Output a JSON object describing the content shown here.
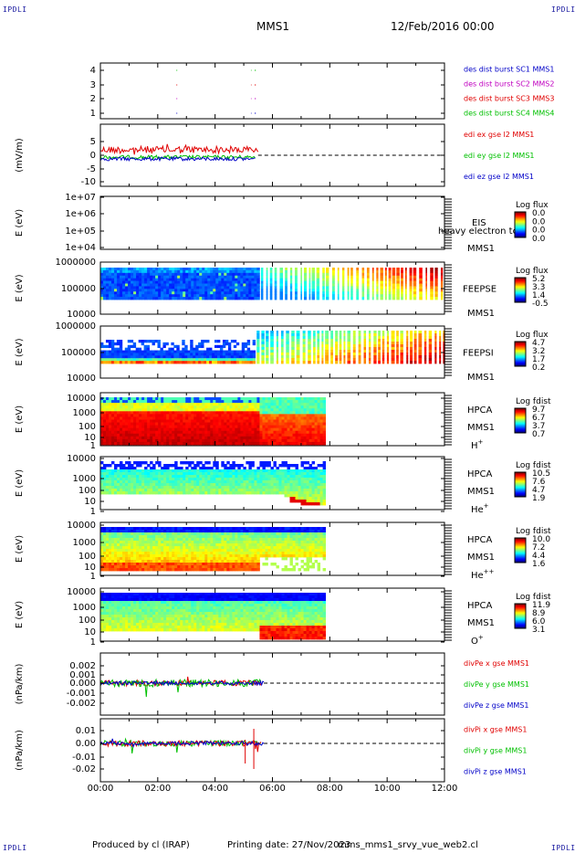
{
  "corner_tag": "IPDLI",
  "header": {
    "title": "MMS1",
    "datetime": "12/Feb/2016 00:00"
  },
  "footer": {
    "producer": "Produced by cl (IRAP)",
    "print_date": "Printing date: 27/Nov/2023",
    "filename": "mms_mms1_srvy_vue_web2.cl"
  },
  "time_axis": {
    "ticks": [
      "00:00",
      "02:00",
      "04:00",
      "06:00",
      "08:00",
      "10:00",
      "12:00"
    ]
  },
  "colors": {
    "red": "#e00000",
    "green": "#00c000",
    "blue": "#0000c8",
    "magenta": "#c000c0",
    "label_blue": "#0000a0"
  },
  "panels": [
    {
      "id": "burst",
      "type": "lines",
      "ylabel": "",
      "yticks": [
        "4",
        "3",
        "2",
        "1"
      ],
      "legend": [
        {
          "text": "des dist burst SC1 MMS1",
          "color": "#0000c8"
        },
        {
          "text": "des dist burst SC2 MMS2",
          "color": "#c000c0"
        },
        {
          "text": "des dist burst SC3 MMS3",
          "color": "#e00000"
        },
        {
          "text": "des dist burst SC4 MMS4",
          "color": "#00c000"
        }
      ]
    },
    {
      "id": "edi",
      "type": "lines",
      "ylabel": "(mV/m)",
      "yticks": [
        "5",
        "0",
        "-5",
        "-10"
      ],
      "legend": [
        {
          "text": "edi ex gse l2 MMS1",
          "color": "#e00000"
        },
        {
          "text": "edi ey gse l2 MMS1",
          "color": "#00c000"
        },
        {
          "text": "edi ez gse l2 MMS1",
          "color": "#0000c8"
        }
      ]
    },
    {
      "id": "eis",
      "type": "spec",
      "ylabel": "E (eV)",
      "yticks": [
        "1e+07",
        "1e+06",
        "1e+05",
        "1e+04"
      ],
      "labels": [
        "EIS",
        "MMS1"
      ],
      "overlay": "heavy electron to",
      "colorbar": {
        "title": "Log flux",
        "ticks": [
          "0.0",
          "0.0",
          "0.0",
          "0.0"
        ]
      }
    },
    {
      "id": "feepse",
      "type": "spec",
      "ylabel": "E (eV)",
      "yticks": [
        "1000000",
        "100000",
        "10000"
      ],
      "labels": [
        "FEEPSE",
        "MMS1"
      ],
      "colorbar": {
        "title": "Log flux",
        "ticks": [
          "5.2",
          "3.3",
          "1.4",
          "-0.5"
        ]
      }
    },
    {
      "id": "feepsi",
      "type": "spec",
      "ylabel": "E (eV)",
      "yticks": [
        "1000000",
        "100000",
        "10000"
      ],
      "labels": [
        "FEEPSI",
        "MMS1"
      ],
      "colorbar": {
        "title": "Log flux",
        "ticks": [
          "4.7",
          "3.2",
          "1.7",
          "0.2"
        ]
      }
    },
    {
      "id": "hpca_h",
      "type": "spec",
      "ylabel": "E (eV)",
      "yticks": [
        "10000",
        "1000",
        "100",
        "10",
        "1"
      ],
      "labels": [
        "HPCA",
        "MMS1",
        "H+"
      ],
      "colorbar": {
        "title": "Log fdist",
        "ticks": [
          "9.7",
          "6.7",
          "3.7",
          "0.7"
        ]
      }
    },
    {
      "id": "hpca_he",
      "type": "spec",
      "ylabel": "E (eV)",
      "yticks": [
        "10000",
        "1000",
        "100",
        "10",
        "1"
      ],
      "labels": [
        "HPCA",
        "MMS1",
        "He+"
      ],
      "colorbar": {
        "title": "Log fdist",
        "ticks": [
          "10.5",
          "7.6",
          "4.7",
          "1.9"
        ]
      }
    },
    {
      "id": "hpca_he2",
      "type": "spec",
      "ylabel": "E (eV)",
      "yticks": [
        "10000",
        "1000",
        "100",
        "10",
        "1"
      ],
      "labels": [
        "HPCA",
        "MMS1",
        "He++"
      ],
      "colorbar": {
        "title": "Log fdist",
        "ticks": [
          "10.0",
          "7.2",
          "4.4",
          "1.6"
        ]
      }
    },
    {
      "id": "hpca_o",
      "type": "spec",
      "ylabel": "E (eV)",
      "yticks": [
        "10000",
        "1000",
        "100",
        "10",
        "1"
      ],
      "labels": [
        "HPCA",
        "MMS1",
        "O+"
      ],
      "colorbar": {
        "title": "Log fdist",
        "ticks": [
          "11.9",
          "8.9",
          "6.0",
          "3.1"
        ]
      }
    },
    {
      "id": "divpe",
      "type": "lines",
      "ylabel": "(nPa/km)",
      "yticks": [
        "0.002",
        "0.001",
        "0.000",
        "-0.001",
        "-0.002"
      ],
      "legend": [
        {
          "text": "divPe x gse MMS1",
          "color": "#e00000"
        },
        {
          "text": "divPe y gse MMS1",
          "color": "#00c000"
        },
        {
          "text": "divPe z gse MMS1",
          "color": "#0000c8"
        }
      ]
    },
    {
      "id": "divpi",
      "type": "lines",
      "ylabel": "(nPa/km)",
      "yticks": [
        "0.01",
        "0.00",
        "-0.01",
        "-0.02"
      ],
      "legend": [
        {
          "text": "divPi x gse MMS1",
          "color": "#e00000"
        },
        {
          "text": "divPi y gse MMS1",
          "color": "#00c000"
        },
        {
          "text": "divPi z gse MMS1",
          "color": "#0000c8"
        }
      ]
    }
  ],
  "chart_data": {
    "type": "line",
    "x_range_hours": [
      0,
      12
    ],
    "xticks": [
      "00:00",
      "02:00",
      "04:00",
      "06:00",
      "08:00",
      "10:00",
      "12:00"
    ],
    "data_coverage_hours": {
      "edi": [
        0,
        5.5
      ],
      "feeps": [
        0,
        12
      ],
      "hpca": [
        0,
        7.85
      ],
      "divp": [
        0,
        5.7
      ]
    }
  }
}
